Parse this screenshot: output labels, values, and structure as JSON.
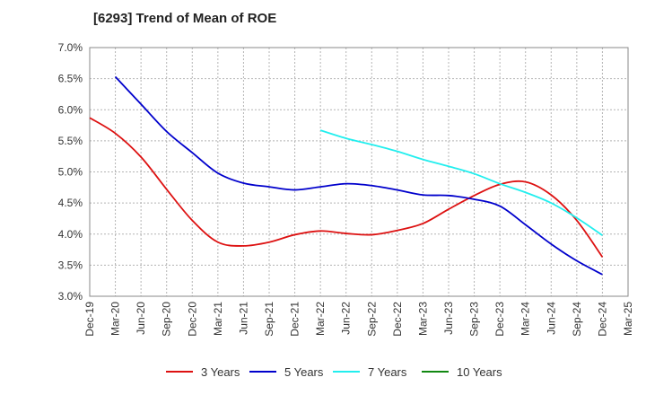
{
  "chart_data": {
    "type": "line",
    "title": "[6293]  Trend of Mean of ROE",
    "xlabel": "",
    "ylabel": "",
    "x": [
      "Dec-19",
      "Mar-20",
      "Jun-20",
      "Sep-20",
      "Dec-20",
      "Mar-21",
      "Jun-21",
      "Sep-21",
      "Dec-21",
      "Mar-22",
      "Jun-22",
      "Sep-22",
      "Dec-22",
      "Mar-23",
      "Jun-23",
      "Sep-23",
      "Dec-23",
      "Mar-24",
      "Jun-24",
      "Sep-24",
      "Dec-24",
      "Mar-25"
    ],
    "ylim": [
      3.0,
      7.0
    ],
    "yticks": [
      "3.0%",
      "3.5%",
      "4.0%",
      "4.5%",
      "5.0%",
      "5.5%",
      "6.0%",
      "6.5%",
      "7.0%"
    ],
    "grid": true,
    "legend_position": "bottom",
    "series": [
      {
        "name": "3 Years",
        "color": "#dd1111",
        "values": [
          5.87,
          5.62,
          5.24,
          4.72,
          4.22,
          3.87,
          3.81,
          3.87,
          3.99,
          4.05,
          4.01,
          3.99,
          4.06,
          4.17,
          4.4,
          4.62,
          4.8,
          4.84,
          4.63,
          4.22,
          3.63,
          null
        ]
      },
      {
        "name": "5 Years",
        "color": "#0000cc",
        "values": [
          null,
          6.53,
          6.09,
          5.65,
          5.31,
          4.98,
          4.82,
          4.76,
          4.71,
          4.76,
          4.81,
          4.78,
          4.71,
          4.63,
          4.62,
          4.56,
          4.45,
          4.15,
          3.84,
          3.57,
          3.35,
          null
        ]
      },
      {
        "name": "7 Years",
        "color": "#22eeee",
        "values": [
          null,
          null,
          null,
          null,
          null,
          null,
          null,
          null,
          null,
          5.67,
          5.54,
          5.44,
          5.33,
          5.2,
          5.09,
          4.97,
          4.81,
          4.67,
          4.5,
          4.26,
          3.98,
          null
        ]
      },
      {
        "name": "10 Years",
        "color": "#118811",
        "values": [
          null,
          null,
          null,
          null,
          null,
          null,
          null,
          null,
          null,
          null,
          null,
          null,
          null,
          null,
          null,
          null,
          null,
          null,
          null,
          null,
          null,
          null
        ]
      }
    ]
  }
}
